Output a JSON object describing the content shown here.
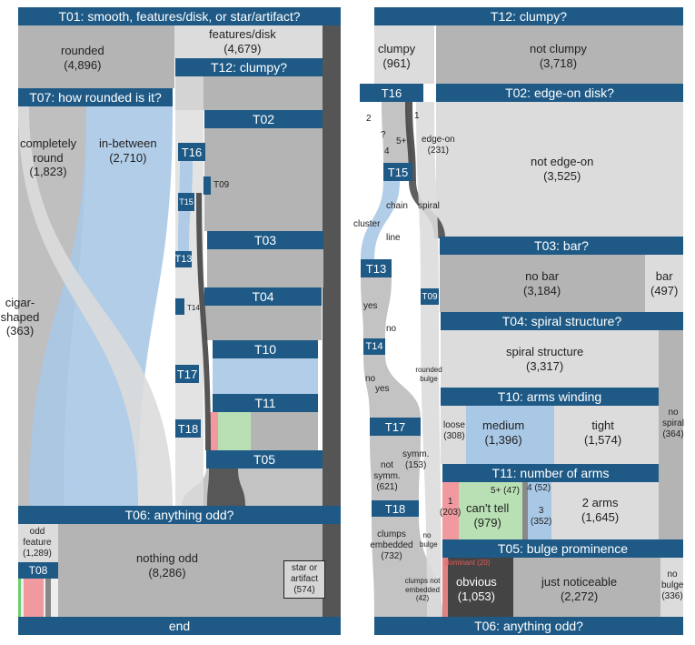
{
  "colors": {
    "header": "#1f5a86",
    "grey_flow": "#b4b4b4",
    "light_flow": "#dcdcdc",
    "blue_flow": "#a9c8e6",
    "dark_flow": "#444444",
    "red_flow": "#f09aa0",
    "green_flow": "#b9e0b4"
  },
  "left": {
    "headers": {
      "t01": "T01: smooth, features/disk, or star/artifact?",
      "t12": "T12: clumpy?",
      "t07": "T07: how rounded is it?",
      "t02": "T02",
      "t16": "T16",
      "t15": "T15",
      "t09": "T09",
      "t13": "T13",
      "t14": "T14",
      "t03": "T03",
      "t04": "T04",
      "t10": "T10",
      "t17": "T17",
      "t11": "T11",
      "t18": "T18",
      "t05": "T05",
      "t06": "T06: anything odd?",
      "t08": "T08",
      "end": "end"
    },
    "labels": {
      "rounded": {
        "name": "rounded",
        "count": "(4,896)"
      },
      "features_disk": {
        "name": "features/disk",
        "count": "(4,679)"
      },
      "completely_round": {
        "name": "completely round",
        "count": "(1,823)"
      },
      "in_between": {
        "name": "in-between",
        "count": "(2,710)"
      },
      "cigar_shaped": {
        "name": "cigar-shaped",
        "count": "(363)"
      },
      "odd_feature": {
        "name": "odd feature",
        "count": "(1,289)"
      },
      "nothing_odd": {
        "name": "nothing odd",
        "count": "(8,286)"
      },
      "star_artifact": {
        "name": "star or artifact",
        "count": "(574)"
      }
    }
  },
  "right": {
    "headers": {
      "t12": "T12: clumpy?",
      "t16": "T16",
      "t02": "T02: edge-on disk?",
      "t15": "T15",
      "t13": "T13",
      "t09": "T09",
      "t03": "T03: bar?",
      "t04": "T04: spiral structure?",
      "t14": "T14",
      "t10": "T10: arms winding",
      "t17": "T17",
      "t11": "T11: number of arms",
      "t18": "T18",
      "t05": "T05: bulge prominence",
      "t06": "T06: anything odd?"
    },
    "labels": {
      "clumpy": {
        "name": "clumpy",
        "count": "(961)"
      },
      "not_clumpy": {
        "name": "not clumpy",
        "count": "(3,718)"
      },
      "edge_on": {
        "name": "edge-on",
        "count": "(231)"
      },
      "not_edge_on": {
        "name": "not edge-on",
        "count": "(3,525)"
      },
      "no_bar": {
        "name": "no bar",
        "count": "(3,184)"
      },
      "bar": {
        "name": "bar",
        "count": "(497)"
      },
      "spiral_structure": {
        "name": "spiral structure",
        "count": "(3,317)"
      },
      "loose": {
        "name": "loose",
        "count": "(308)"
      },
      "medium": {
        "name": "medium",
        "count": "(1,396)"
      },
      "tight": {
        "name": "tight",
        "count": "(1,574)"
      },
      "no_spiral": {
        "name": "no spiral",
        "count": "(364)"
      },
      "one_arm": {
        "name": "1",
        "count": "(203)"
      },
      "cant_tell": {
        "name": "can't tell",
        "count": "(979)"
      },
      "five_plus": "5+ (47)",
      "four_arms": "4 (52)",
      "three_arms": {
        "name": "3",
        "count": "(352)"
      },
      "two_arms": {
        "name": "2 arms",
        "count": "(1,645)"
      },
      "dominant": "dominant (20)",
      "obvious": {
        "name": "obvious",
        "count": "(1,053)"
      },
      "just_noticeable": {
        "name": "just noticeable",
        "count": "(2,272)"
      },
      "no_bulge_big": {
        "name": "no bulge",
        "count": "(336)"
      },
      "symm": {
        "name": "symm.",
        "count": "(153)"
      },
      "not_symm": {
        "name": "not symm.",
        "count": "(621)"
      },
      "clumps_embedded": {
        "name": "clumps embedded",
        "count": "(732)"
      },
      "clumps_not_embedded": {
        "name": "clumps not embedded",
        "count": "(42)"
      }
    },
    "small_labels": {
      "two": "2",
      "one": "1",
      "q": "?",
      "four": "4",
      "five_plus": "5+",
      "chain": "chain",
      "spiral": "spiral",
      "cluster": "cluster",
      "line": "line",
      "yes1": "yes",
      "no1": "no",
      "no2": "no",
      "yes2": "yes",
      "rounded_bulge": "rounded bulge",
      "no_bulge": "no bulge"
    }
  }
}
